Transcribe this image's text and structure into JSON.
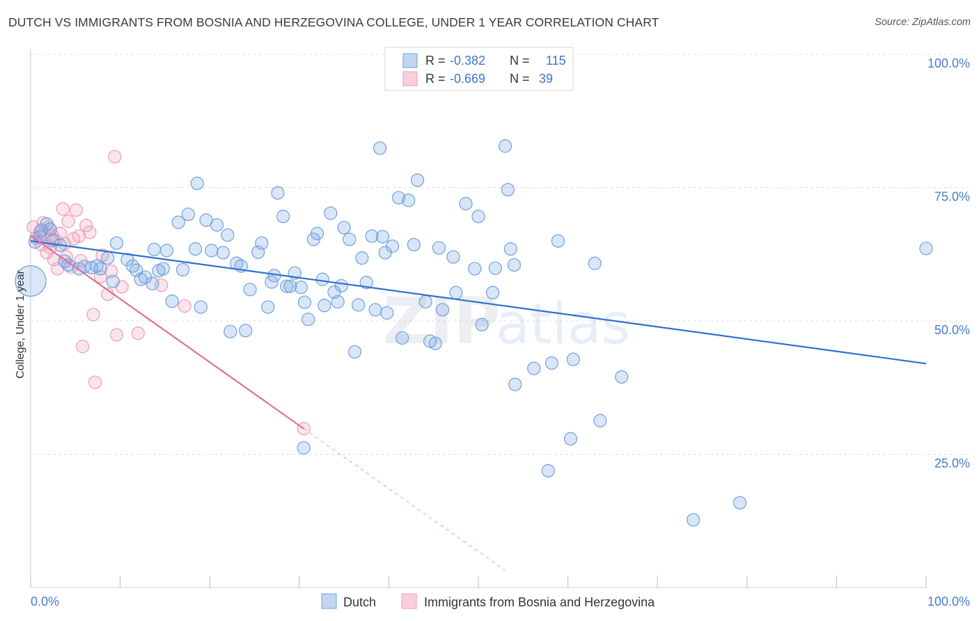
{
  "title": "DUTCH VS IMMIGRANTS FROM BOSNIA AND HERZEGOVINA COLLEGE, UNDER 1 YEAR CORRELATION CHART",
  "source": "Source: ZipAtlas.com",
  "watermark": {
    "zip": "ZIP",
    "atlas": "atlas"
  },
  "colors": {
    "dutch_fill": "rgba(120,165,225,0.28)",
    "dutch_stroke": "#6f9fdc",
    "dutch_line": "#2f6fce",
    "bosnia_fill": "rgba(240,150,180,0.25)",
    "bosnia_stroke": "#ec9ab6",
    "bosnia_line": "#e0709a",
    "tick_label": "#4a7cc9",
    "grid": "#dddddd"
  },
  "legend_box": {
    "rows": [
      {
        "r_label": "R =",
        "r_value": "-0.382",
        "n_label": "N =",
        "n_value": "115"
      },
      {
        "r_label": "R =",
        "r_value": "-0.669",
        "n_label": "N =",
        "n_value": "39"
      }
    ]
  },
  "chart_data": {
    "type": "scatter",
    "title": "DUTCH VS IMMIGRANTS FROM BOSNIA AND HERZEGOVINA COLLEGE, UNDER 1 YEAR CORRELATION CHART",
    "ylabel": "College, Under 1 year",
    "xlabel": "",
    "xlim": [
      0,
      100
    ],
    "ylim": [
      0,
      100
    ],
    "x_tick_labels": [
      "0.0%",
      "100.0%"
    ],
    "y_tick_labels": [
      "25.0%",
      "50.0%",
      "75.0%",
      "100.0%"
    ],
    "y_ticks": [
      25,
      50,
      75,
      100
    ],
    "grid": true,
    "legend_placement": "bottom",
    "series": [
      {
        "name": "Dutch",
        "r": -0.382,
        "n": 115,
        "trend": {
          "x": [
            0,
            100
          ],
          "y": [
            65.0,
            42.0
          ]
        },
        "points": [
          {
            "x": 0.0,
            "y": 57.5,
            "big": true
          },
          {
            "x": 0.5,
            "y": 64.8
          },
          {
            "x": 1.0,
            "y": 65.8
          },
          {
            "x": 1.2,
            "y": 67.0
          },
          {
            "x": 1.8,
            "y": 68.2
          },
          {
            "x": 2.2,
            "y": 67.2
          },
          {
            "x": 2.5,
            "y": 65.1
          },
          {
            "x": 3.3,
            "y": 64.2
          },
          {
            "x": 3.8,
            "y": 61.2
          },
          {
            "x": 4.2,
            "y": 60.5
          },
          {
            "x": 5.4,
            "y": 59.8
          },
          {
            "x": 6.0,
            "y": 60.2
          },
          {
            "x": 6.8,
            "y": 60.0
          },
          {
            "x": 7.4,
            "y": 60.3
          },
          {
            "x": 7.8,
            "y": 59.8
          },
          {
            "x": 8.6,
            "y": 61.8
          },
          {
            "x": 9.2,
            "y": 57.4
          },
          {
            "x": 9.6,
            "y": 64.6
          },
          {
            "x": 10.8,
            "y": 61.5
          },
          {
            "x": 11.4,
            "y": 60.3
          },
          {
            "x": 11.8,
            "y": 59.5
          },
          {
            "x": 12.3,
            "y": 57.8
          },
          {
            "x": 12.8,
            "y": 58.2
          },
          {
            "x": 13.6,
            "y": 57.0
          },
          {
            "x": 13.8,
            "y": 63.4
          },
          {
            "x": 14.3,
            "y": 59.4
          },
          {
            "x": 15.2,
            "y": 63.2
          },
          {
            "x": 14.8,
            "y": 59.8
          },
          {
            "x": 15.8,
            "y": 53.7
          },
          {
            "x": 16.5,
            "y": 68.5
          },
          {
            "x": 17.0,
            "y": 59.6
          },
          {
            "x": 17.6,
            "y": 70.0
          },
          {
            "x": 18.4,
            "y": 63.5
          },
          {
            "x": 18.6,
            "y": 75.8
          },
          {
            "x": 19.0,
            "y": 52.6
          },
          {
            "x": 19.6,
            "y": 68.9
          },
          {
            "x": 20.2,
            "y": 63.2
          },
          {
            "x": 20.8,
            "y": 68.0
          },
          {
            "x": 21.5,
            "y": 62.8
          },
          {
            "x": 22.0,
            "y": 66.1
          },
          {
            "x": 22.3,
            "y": 48.0
          },
          {
            "x": 23.0,
            "y": 60.8
          },
          {
            "x": 23.5,
            "y": 60.3
          },
          {
            "x": 24.0,
            "y": 48.2
          },
          {
            "x": 24.5,
            "y": 55.9
          },
          {
            "x": 25.4,
            "y": 62.9
          },
          {
            "x": 25.8,
            "y": 64.6
          },
          {
            "x": 26.5,
            "y": 52.6
          },
          {
            "x": 26.9,
            "y": 57.3
          },
          {
            "x": 27.2,
            "y": 58.5
          },
          {
            "x": 27.6,
            "y": 74.0
          },
          {
            "x": 28.2,
            "y": 69.6
          },
          {
            "x": 28.6,
            "y": 56.5
          },
          {
            "x": 29.0,
            "y": 56.5
          },
          {
            "x": 29.5,
            "y": 59.0
          },
          {
            "x": 30.2,
            "y": 56.3
          },
          {
            "x": 30.6,
            "y": 53.5
          },
          {
            "x": 31.0,
            "y": 50.3
          },
          {
            "x": 31.6,
            "y": 65.3
          },
          {
            "x": 32.0,
            "y": 66.4
          },
          {
            "x": 32.6,
            "y": 57.8
          },
          {
            "x": 32.8,
            "y": 52.9
          },
          {
            "x": 33.5,
            "y": 70.2
          },
          {
            "x": 33.9,
            "y": 55.4
          },
          {
            "x": 34.3,
            "y": 53.6
          },
          {
            "x": 34.7,
            "y": 56.6
          },
          {
            "x": 35.0,
            "y": 67.5
          },
          {
            "x": 35.6,
            "y": 65.3
          },
          {
            "x": 36.2,
            "y": 44.2
          },
          {
            "x": 36.6,
            "y": 53.0
          },
          {
            "x": 37.0,
            "y": 61.8
          },
          {
            "x": 37.5,
            "y": 57.2
          },
          {
            "x": 38.1,
            "y": 65.9
          },
          {
            "x": 38.5,
            "y": 52.1
          },
          {
            "x": 39.3,
            "y": 65.8
          },
          {
            "x": 39.0,
            "y": 82.4
          },
          {
            "x": 39.6,
            "y": 62.8
          },
          {
            "x": 39.8,
            "y": 51.5
          },
          {
            "x": 40.4,
            "y": 64.0
          },
          {
            "x": 41.1,
            "y": 73.1
          },
          {
            "x": 41.5,
            "y": 46.8
          },
          {
            "x": 42.2,
            "y": 72.6
          },
          {
            "x": 42.8,
            "y": 64.3
          },
          {
            "x": 43.2,
            "y": 76.4
          },
          {
            "x": 44.1,
            "y": 53.6
          },
          {
            "x": 44.6,
            "y": 46.2
          },
          {
            "x": 45.2,
            "y": 45.8
          },
          {
            "x": 45.6,
            "y": 63.7
          },
          {
            "x": 46.0,
            "y": 52.1
          },
          {
            "x": 47.2,
            "y": 62.0
          },
          {
            "x": 47.5,
            "y": 55.3
          },
          {
            "x": 48.6,
            "y": 72.0
          },
          {
            "x": 49.6,
            "y": 59.8
          },
          {
            "x": 50.0,
            "y": 69.6
          },
          {
            "x": 50.4,
            "y": 49.3
          },
          {
            "x": 51.6,
            "y": 55.3
          },
          {
            "x": 51.9,
            "y": 59.9
          },
          {
            "x": 53.0,
            "y": 82.8
          },
          {
            "x": 53.3,
            "y": 74.6
          },
          {
            "x": 53.6,
            "y": 63.5
          },
          {
            "x": 54.0,
            "y": 60.5
          },
          {
            "x": 54.1,
            "y": 38.1
          },
          {
            "x": 56.2,
            "y": 41.1
          },
          {
            "x": 57.8,
            "y": 21.9
          },
          {
            "x": 58.2,
            "y": 42.1
          },
          {
            "x": 58.9,
            "y": 65.0
          },
          {
            "x": 60.3,
            "y": 27.9
          },
          {
            "x": 60.6,
            "y": 42.8
          },
          {
            "x": 63.0,
            "y": 60.8
          },
          {
            "x": 63.6,
            "y": 31.3
          },
          {
            "x": 66.0,
            "y": 39.5
          },
          {
            "x": 74.0,
            "y": 12.7
          },
          {
            "x": 79.2,
            "y": 15.9
          },
          {
            "x": 100.0,
            "y": 63.6
          },
          {
            "x": 30.5,
            "y": 26.2
          }
        ]
      },
      {
        "name": "Immigrants from Bosnia and Herzegovina",
        "r": -0.669,
        "n": 39,
        "trend": {
          "x": [
            0,
            30.5
          ],
          "y": [
            66.0,
            29.8
          ]
        },
        "trend_dashed": {
          "x": [
            30.5,
            53.0
          ],
          "y": [
            29.8,
            3.2
          ]
        },
        "points": [
          {
            "x": 0.3,
            "y": 67.6
          },
          {
            "x": 0.6,
            "y": 65.5
          },
          {
            "x": 1.0,
            "y": 66.6
          },
          {
            "x": 1.2,
            "y": 64.3
          },
          {
            "x": 1.4,
            "y": 68.4
          },
          {
            "x": 1.6,
            "y": 66.2
          },
          {
            "x": 1.8,
            "y": 62.8
          },
          {
            "x": 2.0,
            "y": 67.5
          },
          {
            "x": 2.2,
            "y": 63.8
          },
          {
            "x": 2.4,
            "y": 66.0
          },
          {
            "x": 2.6,
            "y": 61.5
          },
          {
            "x": 2.8,
            "y": 65.1
          },
          {
            "x": 3.0,
            "y": 59.8
          },
          {
            "x": 3.3,
            "y": 66.4
          },
          {
            "x": 3.6,
            "y": 71.0
          },
          {
            "x": 3.8,
            "y": 64.5
          },
          {
            "x": 4.0,
            "y": 62.0
          },
          {
            "x": 4.2,
            "y": 68.7
          },
          {
            "x": 4.5,
            "y": 60.1
          },
          {
            "x": 4.8,
            "y": 65.4
          },
          {
            "x": 5.1,
            "y": 70.8
          },
          {
            "x": 5.4,
            "y": 65.9
          },
          {
            "x": 5.8,
            "y": 45.2
          },
          {
            "x": 5.6,
            "y": 61.3
          },
          {
            "x": 6.2,
            "y": 67.9
          },
          {
            "x": 6.6,
            "y": 66.6
          },
          {
            "x": 7.0,
            "y": 51.2
          },
          {
            "x": 7.2,
            "y": 38.5
          },
          {
            "x": 7.8,
            "y": 58.3
          },
          {
            "x": 8.0,
            "y": 62.3
          },
          {
            "x": 8.6,
            "y": 55.0
          },
          {
            "x": 9.0,
            "y": 59.3
          },
          {
            "x": 9.4,
            "y": 80.8
          },
          {
            "x": 9.6,
            "y": 47.4
          },
          {
            "x": 10.2,
            "y": 56.4
          },
          {
            "x": 12.0,
            "y": 47.7
          },
          {
            "x": 14.6,
            "y": 56.7
          },
          {
            "x": 17.2,
            "y": 52.8
          },
          {
            "x": 30.5,
            "y": 29.8
          }
        ]
      }
    ]
  }
}
